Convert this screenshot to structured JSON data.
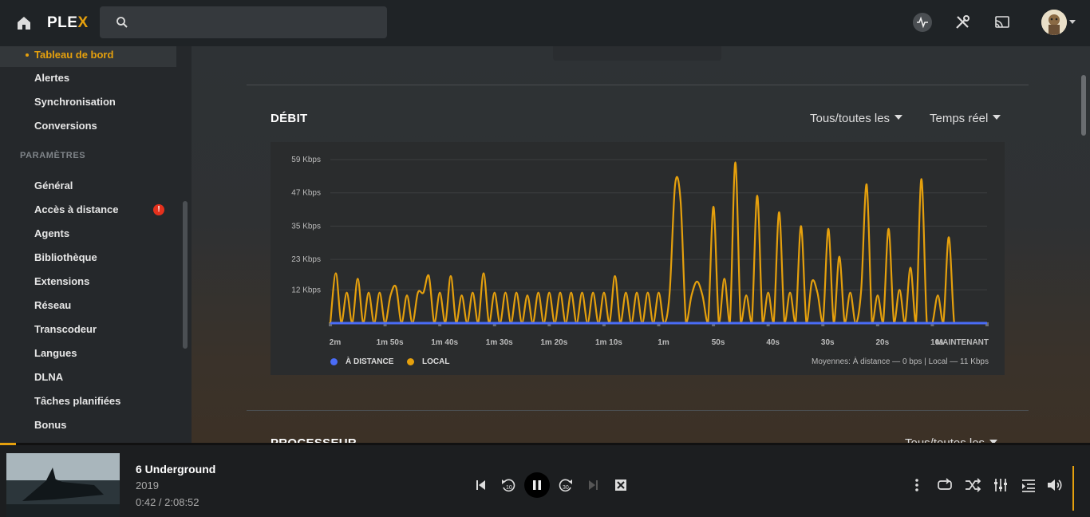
{
  "app": {
    "logo_main": "PLE",
    "logo_accent": "X"
  },
  "search": {
    "placeholder": ""
  },
  "sidebar": {
    "active_item": "Tableau de bord",
    "items_top": [
      "Alertes",
      "Synchronisation",
      "Conversions"
    ],
    "section_label": "PARAMÈTRES",
    "settings_items": [
      "Général",
      "Accès à distance",
      "Agents",
      "Bibliothèque",
      "Extensions",
      "Réseau",
      "Transcodeur",
      "Langues",
      "DLNA",
      "Tâches planifiées",
      "Bonus"
    ]
  },
  "main": {
    "section_title": "DÉBIT",
    "dropdown_filter": "Tous/toutes les",
    "dropdown_time": "Temps réel",
    "next_section_title": "PROCESSEUR",
    "next_section_dropdown": "Tous/toutes les"
  },
  "chart_data": {
    "type": "line",
    "ylabel": "",
    "xlabel": "",
    "y_ticks": [
      "12 Kbps",
      "23 Kbps",
      "35 Kbps",
      "47 Kbps",
      "59 Kbps"
    ],
    "y_tick_values": [
      12,
      23,
      35,
      47,
      59
    ],
    "ylim": [
      0,
      59
    ],
    "x_ticks": [
      "2m",
      "1m 50s",
      "1m 40s",
      "1m 30s",
      "1m 20s",
      "1m 10s",
      "1m",
      "50s",
      "40s",
      "30s",
      "20s",
      "10s",
      "MAINTENANT"
    ],
    "x_tick_values": [
      120,
      110,
      100,
      90,
      80,
      70,
      60,
      50,
      40,
      30,
      20,
      10,
      0
    ],
    "xlim": [
      120,
      0
    ],
    "grid": true,
    "legend_position": "bottom-left",
    "series": [
      {
        "name": "À DISTANCE",
        "color": "#4a6cf7",
        "x": [
          120,
          0
        ],
        "values": [
          0,
          0
        ]
      },
      {
        "name": "LOCAL",
        "color": "#e5a00d",
        "x": [
          120,
          119,
          118,
          117,
          116,
          115,
          114,
          113,
          112,
          111,
          110,
          109,
          108,
          107,
          106,
          105,
          104,
          103,
          102,
          101,
          100,
          99,
          98,
          97,
          96,
          95,
          94,
          93,
          92,
          91,
          90,
          89,
          88,
          87,
          86,
          85,
          84,
          83,
          82,
          81,
          80,
          79,
          78,
          77,
          76,
          75,
          74,
          73,
          72,
          71,
          70,
          69,
          68,
          67,
          66,
          65,
          64,
          63,
          62,
          61,
          60,
          59,
          58,
          57,
          56,
          55,
          54,
          53,
          52,
          51,
          50,
          49,
          48,
          47,
          46,
          45,
          44,
          43,
          42,
          41,
          40,
          39,
          38,
          37,
          36,
          35,
          34,
          33,
          32,
          31,
          30,
          29,
          28,
          27,
          26,
          25,
          24,
          23,
          22,
          21,
          20,
          19,
          18,
          17,
          16,
          15,
          14,
          13,
          12,
          11,
          10,
          9,
          8,
          7,
          6,
          5,
          4
        ],
        "values": [
          0,
          18,
          0,
          11,
          0,
          16,
          0,
          11,
          0,
          11,
          0,
          10,
          13,
          0,
          10,
          0,
          11,
          11,
          17,
          0,
          11,
          0,
          17,
          0,
          10,
          0,
          11,
          0,
          18,
          0,
          11,
          0,
          11,
          0,
          11,
          0,
          10,
          0,
          11,
          0,
          11,
          0,
          11,
          0,
          11,
          0,
          11,
          0,
          11,
          0,
          11,
          0,
          17,
          0,
          11,
          0,
          11,
          0,
          11,
          0,
          11,
          0,
          11,
          50,
          44,
          0,
          10,
          15,
          10,
          0,
          42,
          0,
          16,
          0,
          58,
          0,
          10,
          0,
          46,
          0,
          11,
          0,
          40,
          0,
          11,
          0,
          35,
          0,
          15,
          11,
          0,
          34,
          0,
          24,
          0,
          11,
          0,
          12,
          50,
          0,
          10,
          0,
          34,
          0,
          12,
          0,
          20,
          0,
          52,
          0,
          0,
          10,
          0,
          31,
          0,
          0,
          0
        ]
      }
    ],
    "averages_label": "Moyennes: À distance — 0 bps | Local — 11 Kbps"
  },
  "player": {
    "title": "6 Underground",
    "year": "2019",
    "time": "0:42 / 2:08:52",
    "progress_fraction": 0.0054
  },
  "colors": {
    "accent": "#e5a00d",
    "remote": "#4a6cf7"
  }
}
